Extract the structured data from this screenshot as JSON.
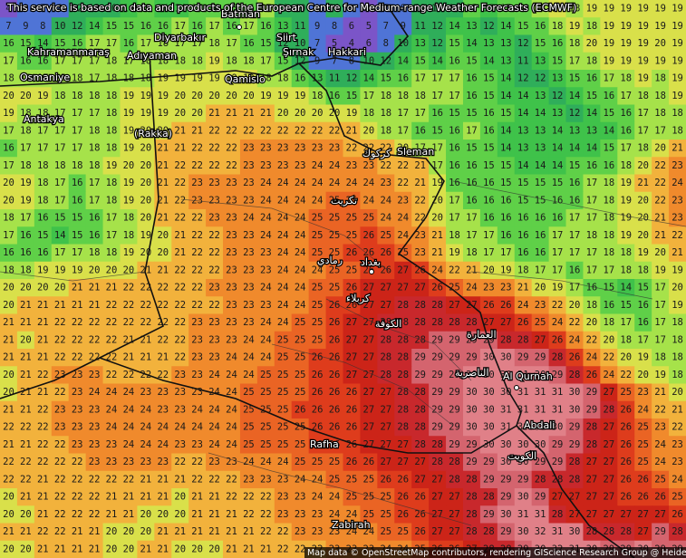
{
  "header": {
    "text": "This service is based on data and products of the European Centre for Medium-range Weather Forecasts (ECMWF)"
  },
  "attribution": {
    "text": "Map data © OpenStreetMap contributors, rendering GIScience Research Group @ Heidelberg University"
  },
  "places": [
    "Batman",
    "Diyarbakır",
    "Adıyaman",
    "Kahramanmaraş",
    "Osmaniye",
    "Siirt",
    "Şırnak",
    "Hakkari",
    "Qamislo",
    "Antakya",
    "(Rakka)",
    "Sleman",
    "بغداد",
    "كربلاء",
    "رمادي",
    "الكوفة",
    "الناصرية",
    "العمارة",
    "كركوك",
    "تكريت",
    "Al Qurnah",
    "Abdali",
    "الكويت",
    "Rafha",
    "Zabirah"
  ],
  "grid": [
    [
      4,
      9,
      7,
      8,
      12,
      12,
      10,
      14,
      15,
      14,
      14,
      15,
      16,
      15,
      16,
      17,
      11,
      10,
      9,
      11,
      9,
      6,
      7,
      8,
      12,
      10,
      11,
      15,
      13,
      15,
      16,
      18,
      19,
      18,
      19,
      19,
      19,
      19,
      19,
      19
    ],
    [
      7,
      9,
      8,
      10,
      12,
      14,
      15,
      15,
      16,
      16,
      17,
      16,
      17,
      16,
      17,
      16,
      13,
      11,
      9,
      8,
      6,
      5,
      7,
      9,
      11,
      12,
      14,
      13,
      12,
      14,
      15,
      16,
      18,
      19,
      18,
      19,
      19,
      19,
      19,
      19
    ],
    [
      16,
      15,
      14,
      15,
      16,
      17,
      17,
      16,
      17,
      18,
      17,
      17,
      18,
      17,
      16,
      15,
      12,
      10,
      7,
      5,
      4,
      6,
      8,
      10,
      13,
      12,
      15,
      14,
      13,
      13,
      12,
      15,
      16,
      18,
      20,
      19,
      19,
      19,
      20,
      19
    ],
    [
      17,
      16,
      16,
      17,
      17,
      17,
      18,
      17,
      18,
      18,
      18,
      18,
      19,
      18,
      18,
      17,
      15,
      12,
      9,
      7,
      8,
      10,
      12,
      14,
      15,
      14,
      16,
      15,
      14,
      13,
      11,
      13,
      15,
      17,
      18,
      19,
      19,
      19,
      19,
      19
    ],
    [
      18,
      18,
      17,
      18,
      18,
      17,
      18,
      18,
      18,
      19,
      19,
      19,
      19,
      19,
      19,
      18,
      18,
      16,
      13,
      11,
      12,
      14,
      15,
      16,
      17,
      17,
      17,
      16,
      15,
      14,
      12,
      12,
      13,
      15,
      16,
      17,
      18,
      19,
      18,
      19
    ],
    [
      20,
      20,
      19,
      18,
      18,
      18,
      18,
      19,
      19,
      19,
      20,
      20,
      20,
      20,
      20,
      19,
      19,
      19,
      18,
      16,
      15,
      17,
      18,
      18,
      18,
      17,
      17,
      16,
      15,
      14,
      14,
      13,
      12,
      14,
      15,
      16,
      17,
      18,
      18,
      19
    ],
    [
      19,
      18,
      18,
      17,
      17,
      17,
      18,
      19,
      19,
      19,
      20,
      20,
      21,
      21,
      21,
      21,
      20,
      20,
      20,
      20,
      19,
      18,
      18,
      17,
      17,
      16,
      15,
      15,
      16,
      15,
      14,
      14,
      13,
      12,
      14,
      15,
      16,
      17,
      18,
      18
    ],
    [
      17,
      18,
      17,
      17,
      17,
      18,
      18,
      19,
      20,
      20,
      21,
      21,
      22,
      22,
      22,
      22,
      22,
      22,
      22,
      22,
      21,
      20,
      18,
      17,
      16,
      15,
      16,
      17,
      16,
      14,
      13,
      13,
      14,
      13,
      13,
      14,
      16,
      17,
      17,
      18
    ],
    [
      16,
      17,
      17,
      17,
      17,
      18,
      18,
      19,
      20,
      21,
      21,
      22,
      22,
      22,
      23,
      23,
      23,
      23,
      23,
      23,
      22,
      22,
      22,
      20,
      17,
      17,
      16,
      15,
      15,
      14,
      13,
      13,
      14,
      14,
      14,
      15,
      17,
      18,
      20,
      21
    ],
    [
      17,
      18,
      18,
      18,
      18,
      18,
      19,
      20,
      20,
      21,
      22,
      22,
      22,
      22,
      23,
      23,
      23,
      23,
      24,
      24,
      23,
      23,
      22,
      22,
      21,
      17,
      16,
      16,
      15,
      15,
      14,
      14,
      14,
      15,
      16,
      16,
      18,
      20,
      22,
      23
    ],
    [
      20,
      19,
      18,
      17,
      16,
      17,
      18,
      19,
      20,
      21,
      22,
      23,
      23,
      23,
      23,
      24,
      24,
      24,
      24,
      24,
      24,
      24,
      23,
      22,
      21,
      19,
      16,
      16,
      16,
      15,
      15,
      15,
      15,
      16,
      17,
      18,
      19,
      21,
      22,
      24
    ],
    [
      20,
      19,
      18,
      17,
      16,
      17,
      18,
      19,
      20,
      21,
      22,
      23,
      23,
      23,
      23,
      24,
      24,
      24,
      24,
      25,
      25,
      24,
      24,
      23,
      22,
      20,
      17,
      16,
      16,
      16,
      15,
      15,
      16,
      16,
      17,
      18,
      19,
      20,
      22,
      23
    ],
    [
      18,
      17,
      16,
      15,
      15,
      16,
      17,
      18,
      20,
      21,
      22,
      22,
      23,
      23,
      24,
      24,
      24,
      24,
      25,
      25,
      25,
      25,
      24,
      24,
      22,
      20,
      17,
      17,
      16,
      16,
      16,
      16,
      16,
      17,
      17,
      18,
      19,
      20,
      21,
      23
    ],
    [
      17,
      16,
      15,
      14,
      15,
      16,
      17,
      18,
      19,
      20,
      21,
      22,
      22,
      23,
      23,
      24,
      24,
      24,
      25,
      25,
      25,
      26,
      25,
      24,
      23,
      21,
      18,
      17,
      17,
      16,
      16,
      16,
      17,
      17,
      18,
      18,
      19,
      20,
      21,
      22
    ],
    [
      16,
      16,
      16,
      17,
      17,
      18,
      18,
      19,
      20,
      20,
      21,
      22,
      22,
      23,
      23,
      23,
      24,
      24,
      25,
      25,
      26,
      26,
      26,
      25,
      23,
      21,
      19,
      18,
      17,
      17,
      16,
      16,
      17,
      17,
      17,
      18,
      18,
      19,
      20,
      21
    ],
    [
      18,
      18,
      19,
      19,
      19,
      20,
      20,
      20,
      21,
      21,
      22,
      22,
      22,
      23,
      23,
      23,
      24,
      24,
      24,
      25,
      25,
      26,
      26,
      27,
      26,
      24,
      22,
      21,
      20,
      19,
      18,
      17,
      17,
      16,
      17,
      17,
      18,
      18,
      19,
      19
    ],
    [
      20,
      20,
      20,
      20,
      21,
      21,
      21,
      22,
      22,
      22,
      22,
      22,
      23,
      23,
      23,
      24,
      24,
      24,
      25,
      25,
      26,
      27,
      27,
      27,
      27,
      26,
      25,
      24,
      23,
      23,
      21,
      20,
      19,
      17,
      16,
      15,
      14,
      15,
      17,
      20
    ],
    [
      20,
      21,
      21,
      21,
      21,
      21,
      22,
      22,
      22,
      22,
      22,
      22,
      22,
      23,
      23,
      23,
      24,
      24,
      25,
      26,
      26,
      27,
      27,
      28,
      28,
      28,
      27,
      27,
      26,
      26,
      24,
      23,
      22,
      20,
      18,
      16,
      15,
      16,
      17,
      19
    ],
    [
      21,
      21,
      21,
      22,
      22,
      22,
      22,
      22,
      22,
      22,
      22,
      23,
      23,
      23,
      23,
      24,
      24,
      25,
      25,
      26,
      27,
      27,
      28,
      28,
      28,
      28,
      28,
      28,
      27,
      27,
      26,
      25,
      24,
      22,
      20,
      18,
      17,
      16,
      17,
      18
    ],
    [
      21,
      20,
      21,
      22,
      22,
      22,
      22,
      21,
      21,
      22,
      22,
      23,
      23,
      23,
      24,
      24,
      25,
      25,
      25,
      26,
      27,
      27,
      28,
      28,
      28,
      29,
      29,
      29,
      29,
      28,
      28,
      27,
      26,
      24,
      22,
      20,
      18,
      17,
      17,
      18
    ],
    [
      21,
      21,
      21,
      22,
      22,
      22,
      22,
      21,
      21,
      21,
      22,
      23,
      23,
      24,
      24,
      24,
      25,
      25,
      26,
      26,
      27,
      27,
      28,
      28,
      29,
      29,
      29,
      29,
      30,
      30,
      29,
      29,
      28,
      26,
      24,
      22,
      20,
      19,
      18,
      18
    ],
    [
      20,
      21,
      22,
      23,
      23,
      23,
      22,
      22,
      22,
      22,
      23,
      23,
      24,
      24,
      24,
      25,
      25,
      25,
      26,
      26,
      27,
      27,
      28,
      28,
      29,
      29,
      29,
      30,
      30,
      30,
      31,
      30,
      29,
      28,
      26,
      24,
      22,
      20,
      19,
      18
    ],
    [
      20,
      21,
      21,
      22,
      23,
      24,
      24,
      24,
      23,
      23,
      23,
      23,
      24,
      24,
      25,
      25,
      25,
      25,
      26,
      26,
      26,
      27,
      27,
      28,
      28,
      29,
      29,
      30,
      30,
      30,
      31,
      31,
      31,
      30,
      29,
      27,
      25,
      23,
      21,
      20
    ],
    [
      21,
      21,
      22,
      23,
      23,
      23,
      24,
      24,
      24,
      23,
      23,
      24,
      24,
      24,
      25,
      25,
      25,
      26,
      26,
      26,
      26,
      27,
      27,
      28,
      28,
      29,
      29,
      30,
      30,
      31,
      31,
      31,
      31,
      30,
      29,
      28,
      26,
      24,
      22,
      21
    ],
    [
      22,
      22,
      22,
      23,
      23,
      23,
      24,
      24,
      24,
      24,
      24,
      24,
      24,
      24,
      25,
      25,
      25,
      25,
      26,
      26,
      26,
      27,
      27,
      28,
      28,
      29,
      29,
      30,
      30,
      31,
      30,
      31,
      30,
      29,
      28,
      27,
      26,
      25,
      23,
      22
    ],
    [
      21,
      21,
      22,
      22,
      23,
      23,
      23,
      24,
      24,
      24,
      23,
      23,
      24,
      24,
      25,
      25,
      25,
      25,
      26,
      26,
      26,
      27,
      27,
      27,
      28,
      28,
      29,
      29,
      30,
      30,
      30,
      30,
      29,
      29,
      28,
      27,
      26,
      25,
      24,
      23
    ],
    [
      22,
      22,
      22,
      22,
      22,
      23,
      23,
      23,
      23,
      23,
      22,
      22,
      23,
      23,
      24,
      24,
      24,
      25,
      25,
      25,
      26,
      26,
      27,
      27,
      27,
      28,
      28,
      29,
      29,
      30,
      30,
      29,
      29,
      28,
      27,
      27,
      26,
      25,
      24,
      23
    ],
    [
      22,
      22,
      21,
      22,
      22,
      22,
      22,
      22,
      21,
      21,
      21,
      22,
      22,
      22,
      23,
      23,
      23,
      24,
      24,
      25,
      25,
      25,
      26,
      26,
      27,
      27,
      28,
      28,
      29,
      29,
      29,
      28,
      28,
      28,
      27,
      27,
      26,
      26,
      25,
      24
    ],
    [
      20,
      21,
      21,
      22,
      22,
      22,
      21,
      21,
      21,
      21,
      20,
      21,
      21,
      22,
      22,
      22,
      23,
      23,
      24,
      24,
      25,
      25,
      25,
      26,
      26,
      27,
      27,
      28,
      28,
      29,
      30,
      29,
      27,
      27,
      27,
      27,
      26,
      26,
      26,
      25
    ],
    [
      20,
      20,
      21,
      22,
      22,
      22,
      21,
      21,
      20,
      20,
      20,
      21,
      21,
      21,
      22,
      22,
      23,
      23,
      23,
      24,
      24,
      25,
      25,
      26,
      26,
      27,
      27,
      28,
      29,
      30,
      31,
      31,
      28,
      27,
      27,
      27,
      27,
      27,
      27,
      26
    ],
    [
      21,
      21,
      22,
      22,
      21,
      21,
      20,
      20,
      20,
      21,
      21,
      21,
      21,
      21,
      21,
      22,
      22,
      23,
      23,
      23,
      24,
      24,
      25,
      25,
      26,
      27,
      27,
      28,
      28,
      29,
      30,
      32,
      31,
      30,
      28,
      28,
      28,
      27,
      29,
      28
    ],
    [
      20,
      20,
      21,
      21,
      21,
      21,
      20,
      20,
      21,
      21,
      20,
      20,
      20,
      21,
      21,
      21,
      22,
      22,
      22,
      23,
      23,
      23,
      24,
      24,
      25,
      26,
      26,
      27,
      28,
      28,
      29,
      30,
      32,
      31,
      30,
      29,
      29,
      30,
      29,
      29
    ]
  ]
}
